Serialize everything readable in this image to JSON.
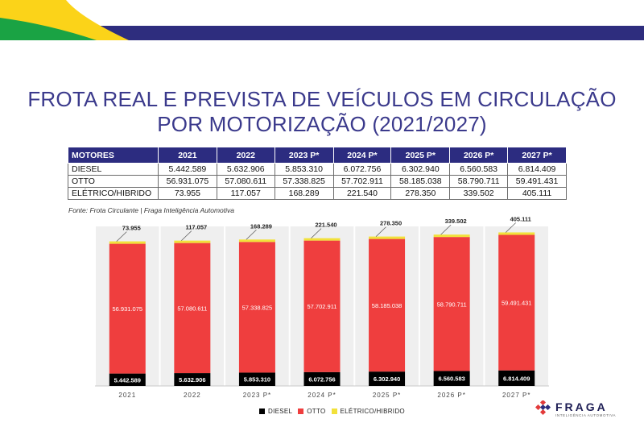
{
  "title_line1": "FROTA REAL E PREVISTA DE VEÍCULOS EM CIRCULAÇÃO",
  "title_line2": "POR MOTORIZAÇÃO (2021/2027)",
  "table": {
    "header": [
      "MOTORES",
      "2021",
      "2022",
      "2023 P*",
      "2024 P*",
      "2025 P*",
      "2026 P*",
      "2027 P*"
    ],
    "rows": [
      [
        "DIESEL",
        "5.442.589",
        "5.632.906",
        "5.853.310",
        "6.072.756",
        "6.302.940",
        "6.560.583",
        "6.814.409"
      ],
      [
        "OTTO",
        "56.931.075",
        "57.080.611",
        "57.338.825",
        "57.702.911",
        "58.185.038",
        "58.790.711",
        "59.491.431"
      ],
      [
        "ELÉTRICO/HIBRIDO",
        "73.955",
        "117.057",
        "168.289",
        "221.540",
        "278.350",
        "339.502",
        "405.111"
      ]
    ]
  },
  "source": "Fonte: Frota Circulante | Fraga Inteligência Automotiva",
  "chart_data": {
    "type": "bar",
    "stacked": true,
    "categories": [
      "2021",
      "2022",
      "2023 P*",
      "2024 P*",
      "2025 P*",
      "2026 P*",
      "2027 P*"
    ],
    "series": [
      {
        "name": "DIESEL",
        "color": "#000000",
        "values": [
          5442589,
          5632906,
          5853310,
          6072756,
          6302940,
          6560583,
          6814409
        ],
        "labels": [
          "5.442.589",
          "5.632.906",
          "5.853.310",
          "6.072.756",
          "6.302.940",
          "6.560.583",
          "6.814.409"
        ]
      },
      {
        "name": "OTTO",
        "color": "#ef3e3e",
        "values": [
          56931075,
          57080611,
          57338825,
          57702911,
          58185038,
          58790711,
          59491431
        ],
        "labels": [
          "56.931.075",
          "57.080.611",
          "57.338.825",
          "57.702.911",
          "58.185.038",
          "58.790.711",
          "59.491.431"
        ]
      },
      {
        "name": "ELÉTRICO/HIBRIDO",
        "color": "#f2e13a",
        "values": [
          73955,
          117057,
          168289,
          221540,
          278350,
          339502,
          405111
        ],
        "labels": [
          "73.955",
          "117.057",
          "168.289",
          "221.540",
          "278.350",
          "339.502",
          "405.111"
        ]
      }
    ],
    "legend": [
      "DIESEL",
      "OTTO",
      "ELÉTRICO/HIBRIDO"
    ],
    "legend_position": "bottom-center",
    "grid": false,
    "ylim": [
      0,
      70000000
    ]
  },
  "colors": {
    "title": "#3b3a8c",
    "header_bg": "#2c2c80",
    "otto": "#ef3e3e",
    "diesel": "#000000",
    "eletrico": "#f2e13a"
  },
  "logo": {
    "name": "FRAGA",
    "sub": "INTELIGÊNCIA AUTOMOTIVA"
  }
}
